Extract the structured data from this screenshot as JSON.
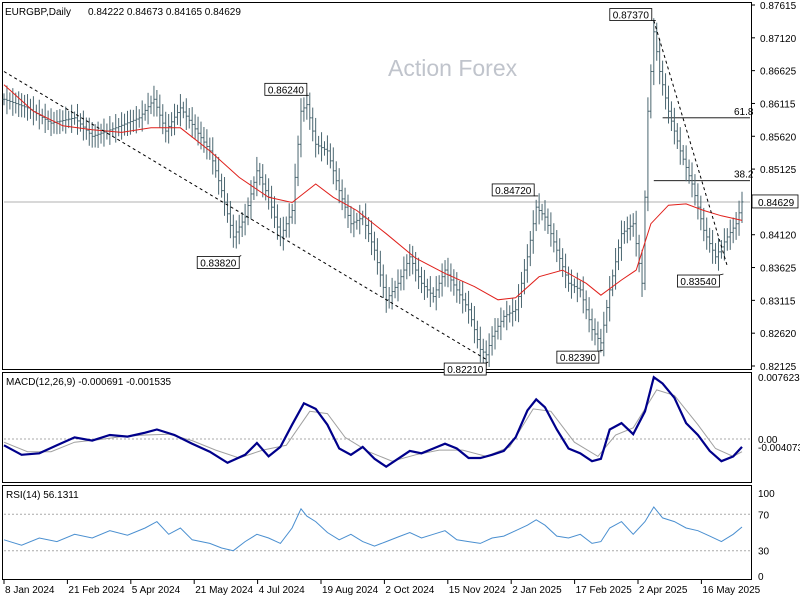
{
  "header": {
    "symbol": "EURGBP,Daily",
    "ohlc": "0.84222 0.84673 0.84165 0.84629"
  },
  "watermark": "Action Forex",
  "colors": {
    "price_bar": "#4a6670",
    "ma": "#e0201b",
    "trendline": "#000000",
    "macd_line": "#00008b",
    "macd_signal": "#a0a0a0",
    "rsi_line": "#4a8fd0",
    "axis_text": "#000000"
  },
  "chart_data": [
    {
      "type": "ohlc",
      "panel": "price",
      "x_labels": [
        "8 Jan 2024",
        "21 Feb 2024",
        "5 Apr 2024",
        "21 May 2024",
        "4 Jul 2024",
        "19 Aug 2024",
        "2 Oct 2024",
        "15 Nov 2024",
        "2 Jan 2025",
        "17 Feb 2025",
        "2 Apr 2025",
        "16 May 2025"
      ],
      "y_ticks": [
        "0.87615",
        "0.87120",
        "0.86625",
        "0.86115",
        "0.85620",
        "0.85125",
        "0.84629",
        "0.84120",
        "0.83625",
        "0.83115",
        "0.82620",
        "0.82125"
      ],
      "ylim": [
        0.8212,
        0.8762
      ],
      "close_path": [
        [
          0,
          0.8618
        ],
        [
          8,
          0.8605
        ],
        [
          16,
          0.8582
        ],
        [
          24,
          0.859
        ],
        [
          30,
          0.8562
        ],
        [
          38,
          0.8575
        ],
        [
          46,
          0.859
        ],
        [
          51,
          0.8618
        ],
        [
          55,
          0.857
        ],
        [
          60,
          0.8605
        ],
        [
          64,
          0.858
        ],
        [
          70,
          0.854
        ],
        [
          74,
          0.848
        ],
        [
          78,
          0.841
        ],
        [
          82,
          0.844
        ],
        [
          86,
          0.851
        ],
        [
          90,
          0.847
        ],
        [
          94,
          0.841
        ],
        [
          98,
          0.845
        ],
        [
          101,
          0.86
        ],
        [
          103,
          0.861
        ],
        [
          106,
          0.855
        ],
        [
          110,
          0.854
        ],
        [
          114,
          0.848
        ],
        [
          118,
          0.843
        ],
        [
          122,
          0.844
        ],
        [
          126,
          0.839
        ],
        [
          130,
          0.8315
        ],
        [
          134,
          0.834
        ],
        [
          138,
          0.838
        ],
        [
          142,
          0.834
        ],
        [
          146,
          0.832
        ],
        [
          150,
          0.836
        ],
        [
          154,
          0.833
        ],
        [
          158,
          0.83
        ],
        [
          162,
          0.824
        ],
        [
          164,
          0.8232
        ],
        [
          166,
          0.826
        ],
        [
          170,
          0.829
        ],
        [
          174,
          0.83
        ],
        [
          178,
          0.838
        ],
        [
          181,
          0.8455
        ],
        [
          184,
          0.844
        ],
        [
          188,
          0.839
        ],
        [
          192,
          0.834
        ],
        [
          196,
          0.833
        ],
        [
          200,
          0.827
        ],
        [
          203,
          0.825
        ],
        [
          206,
          0.833
        ],
        [
          210,
          0.8415
        ],
        [
          214,
          0.843
        ],
        [
          217,
          0.834
        ],
        [
          219,
          0.86
        ],
        [
          221,
          0.872
        ],
        [
          223,
          0.866
        ],
        [
          226,
          0.86
        ],
        [
          230,
          0.854
        ],
        [
          234,
          0.849
        ],
        [
          238,
          0.842
        ],
        [
          242,
          0.838
        ],
        [
          246,
          0.841
        ],
        [
          249,
          0.843
        ],
        [
          251,
          0.8463
        ]
      ],
      "ma_path": [
        [
          0,
          0.864
        ],
        [
          10,
          0.86
        ],
        [
          20,
          0.8578
        ],
        [
          30,
          0.8572
        ],
        [
          40,
          0.8568
        ],
        [
          50,
          0.8575
        ],
        [
          60,
          0.8575
        ],
        [
          70,
          0.854
        ],
        [
          80,
          0.85
        ],
        [
          90,
          0.847
        ],
        [
          98,
          0.8462
        ],
        [
          106,
          0.849
        ],
        [
          112,
          0.847
        ],
        [
          120,
          0.845
        ],
        [
          130,
          0.8415
        ],
        [
          140,
          0.8378
        ],
        [
          150,
          0.8355
        ],
        [
          160,
          0.8335
        ],
        [
          168,
          0.8315
        ],
        [
          174,
          0.8318
        ],
        [
          182,
          0.835
        ],
        [
          190,
          0.836
        ],
        [
          198,
          0.834
        ],
        [
          203,
          0.8322
        ],
        [
          210,
          0.8345
        ],
        [
          215,
          0.836
        ],
        [
          220,
          0.843
        ],
        [
          226,
          0.8458
        ],
        [
          232,
          0.846
        ],
        [
          238,
          0.845
        ],
        [
          244,
          0.8442
        ],
        [
          251,
          0.8435
        ]
      ],
      "trendlines": [
        {
          "from": [
            0,
            0.866
          ],
          "to": [
            164,
            0.8225
          ],
          "style": "dashed"
        },
        {
          "from": [
            221,
            0.8737
          ],
          "to": [
            246,
            0.8366
          ],
          "style": "dashed"
        }
      ],
      "fib_levels": [
        {
          "label": "61.8",
          "value": 0.859,
          "from_x": 224
        },
        {
          "label": "38.2",
          "value": 0.8495,
          "from_x": 221
        }
      ],
      "annotations": [
        {
          "text": "0.87370",
          "x": 221,
          "y": 0.8737
        },
        {
          "text": "0.86240",
          "x": 103,
          "y": 0.8624
        },
        {
          "text": "0.84720",
          "x": 181,
          "y": 0.8472
        },
        {
          "text": "0.83820",
          "x": 80,
          "y": 0.8382
        },
        {
          "text": "0.83540",
          "x": 244,
          "y": 0.8354
        },
        {
          "text": "0.82390",
          "x": 203,
          "y": 0.8239
        },
        {
          "text": "0.82210",
          "x": 164,
          "y": 0.8221
        }
      ],
      "current_price": {
        "value": 0.84629,
        "label": "0.84629"
      }
    },
    {
      "type": "line",
      "panel": "macd",
      "title": "MACD(12,26,9) -0.000691 -0.001535",
      "y_ticks": [
        "0.007623",
        "0.00",
        "-0.004073"
      ],
      "ylim": [
        -0.0053,
        0.0082
      ],
      "zero_label": "0.00",
      "series": [
        {
          "points": [
            [
              0,
              -0.0008
            ],
            [
              6,
              -0.002
            ],
            [
              12,
              -0.0018
            ],
            [
              18,
              -0.0008
            ],
            [
              24,
              0.0002
            ],
            [
              30,
              -0.0002
            ],
            [
              36,
              0.0005
            ],
            [
              42,
              0.0003
            ],
            [
              48,
              0.0008
            ],
            [
              52,
              0.0012
            ],
            [
              58,
              0.0005
            ],
            [
              64,
              -0.0006
            ],
            [
              70,
              -0.0016
            ],
            [
              76,
              -0.003
            ],
            [
              82,
              -0.002
            ],
            [
              86,
              -0.0005
            ],
            [
              90,
              -0.0022
            ],
            [
              94,
              -0.001
            ],
            [
              98,
              0.0018
            ],
            [
              102,
              0.0045
            ],
            [
              106,
              0.0038
            ],
            [
              110,
              0.0018
            ],
            [
              114,
              -0.0012
            ],
            [
              118,
              -0.002
            ],
            [
              122,
              -0.001
            ],
            [
              126,
              -0.0025
            ],
            [
              130,
              -0.0035
            ],
            [
              134,
              -0.0025
            ],
            [
              138,
              -0.0015
            ],
            [
              142,
              -0.0018
            ],
            [
              146,
              -0.0012
            ],
            [
              150,
              -0.0006
            ],
            [
              154,
              -0.0012
            ],
            [
              158,
              -0.0024
            ],
            [
              162,
              -0.0024
            ],
            [
              166,
              -0.002
            ],
            [
              170,
              -0.0015
            ],
            [
              174,
              0.0002
            ],
            [
              178,
              0.0036
            ],
            [
              181,
              0.005
            ],
            [
              184,
              0.004
            ],
            [
              188,
              0.0012
            ],
            [
              192,
              -0.0012
            ],
            [
              196,
              -0.0018
            ],
            [
              200,
              -0.0028
            ],
            [
              203,
              -0.0025
            ],
            [
              206,
              0.0012
            ],
            [
              210,
              0.002
            ],
            [
              214,
              0.0006
            ],
            [
              218,
              0.0035
            ],
            [
              221,
              0.0078
            ],
            [
              224,
              0.007
            ],
            [
              228,
              0.0052
            ],
            [
              232,
              0.002
            ],
            [
              236,
              0.0005
            ],
            [
              240,
              -0.0015
            ],
            [
              244,
              -0.0028
            ],
            [
              248,
              -0.0022
            ],
            [
              251,
              -0.001
            ]
          ]
        },
        {
          "points": [
            [
              0,
              -0.0004
            ],
            [
              8,
              -0.0016
            ],
            [
              16,
              -0.0016
            ],
            [
              24,
              -0.0004
            ],
            [
              32,
              -0.0001
            ],
            [
              40,
              0.0003
            ],
            [
              48,
              0.0005
            ],
            [
              56,
              0.0006
            ],
            [
              64,
              -0.0002
            ],
            [
              72,
              -0.0014
            ],
            [
              80,
              -0.0024
            ],
            [
              88,
              -0.0014
            ],
            [
              96,
              -0.0008
            ],
            [
              104,
              0.0035
            ],
            [
              110,
              0.0032
            ],
            [
              116,
              0.0002
            ],
            [
              124,
              -0.0016
            ],
            [
              132,
              -0.0028
            ],
            [
              140,
              -0.002
            ],
            [
              148,
              -0.0014
            ],
            [
              156,
              -0.0014
            ],
            [
              164,
              -0.0022
            ],
            [
              172,
              -0.001
            ],
            [
              180,
              0.0038
            ],
            [
              186,
              0.0035
            ],
            [
              194,
              -0.0004
            ],
            [
              202,
              -0.0022
            ],
            [
              208,
              0.0005
            ],
            [
              214,
              0.0014
            ],
            [
              222,
              0.0062
            ],
            [
              228,
              0.0055
            ],
            [
              236,
              0.0018
            ],
            [
              242,
              -0.0012
            ],
            [
              248,
              -0.0022
            ],
            [
              251,
              -0.0016
            ]
          ]
        }
      ]
    },
    {
      "type": "line",
      "panel": "rsi",
      "title": "RSI(14) 56.1311",
      "y_ticks": [
        "100",
        "70",
        "30",
        "0"
      ],
      "ylim": [
        0,
        100
      ],
      "levels": [
        70,
        30
      ],
      "series": [
        {
          "points": [
            [
              0,
              42
            ],
            [
              6,
              36
            ],
            [
              12,
              44
            ],
            [
              18,
              40
            ],
            [
              24,
              48
            ],
            [
              30,
              44
            ],
            [
              36,
              52
            ],
            [
              42,
              47
            ],
            [
              48,
              55
            ],
            [
              52,
              62
            ],
            [
              56,
              48
            ],
            [
              60,
              55
            ],
            [
              64,
              42
            ],
            [
              70,
              38
            ],
            [
              74,
              33
            ],
            [
              78,
              30
            ],
            [
              82,
              40
            ],
            [
              86,
              48
            ],
            [
              90,
              44
            ],
            [
              94,
              38
            ],
            [
              98,
              55
            ],
            [
              101,
              76
            ],
            [
              103,
              68
            ],
            [
              106,
              62
            ],
            [
              110,
              50
            ],
            [
              114,
              42
            ],
            [
              118,
              48
            ],
            [
              122,
              40
            ],
            [
              126,
              35
            ],
            [
              130,
              40
            ],
            [
              134,
              45
            ],
            [
              138,
              50
            ],
            [
              142,
              44
            ],
            [
              146,
              48
            ],
            [
              150,
              52
            ],
            [
              154,
              42
            ],
            [
              158,
              40
            ],
            [
              162,
              38
            ],
            [
              166,
              44
            ],
            [
              170,
              46
            ],
            [
              174,
              52
            ],
            [
              178,
              58
            ],
            [
              181,
              64
            ],
            [
              184,
              58
            ],
            [
              188,
              46
            ],
            [
              192,
              44
            ],
            [
              196,
              48
            ],
            [
              200,
              38
            ],
            [
              203,
              40
            ],
            [
              206,
              55
            ],
            [
              210,
              62
            ],
            [
              214,
              48
            ],
            [
              218,
              62
            ],
            [
              221,
              78
            ],
            [
              224,
              66
            ],
            [
              228,
              62
            ],
            [
              232,
              55
            ],
            [
              236,
              52
            ],
            [
              240,
              46
            ],
            [
              244,
              40
            ],
            [
              248,
              48
            ],
            [
              251,
              56
            ]
          ]
        }
      ]
    }
  ]
}
